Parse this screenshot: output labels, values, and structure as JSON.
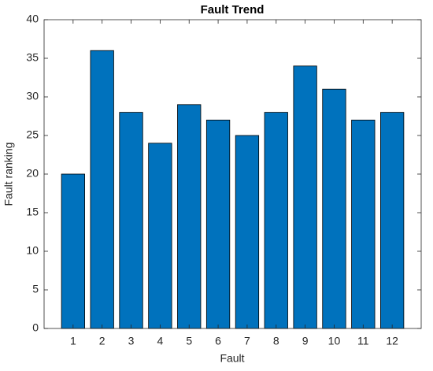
{
  "chart_data": {
    "type": "bar",
    "title": "Fault Trend",
    "x_label": "Fault",
    "y_label": "Fault ranking",
    "x": [
      1,
      2,
      3,
      4,
      5,
      6,
      7,
      8,
      9,
      10,
      11,
      12
    ],
    "values": [
      20,
      36,
      28,
      24,
      29,
      27,
      25,
      28,
      34,
      31,
      27,
      28
    ],
    "color": "#0072bd",
    "xlim": [
      0,
      13
    ],
    "xticks": [
      1,
      2,
      3,
      4,
      5,
      6,
      7,
      8,
      9,
      10,
      11,
      12
    ],
    "ylim": [
      0,
      40
    ],
    "yticks": [
      0,
      5,
      10,
      15,
      20,
      25,
      30,
      35,
      40
    ]
  }
}
